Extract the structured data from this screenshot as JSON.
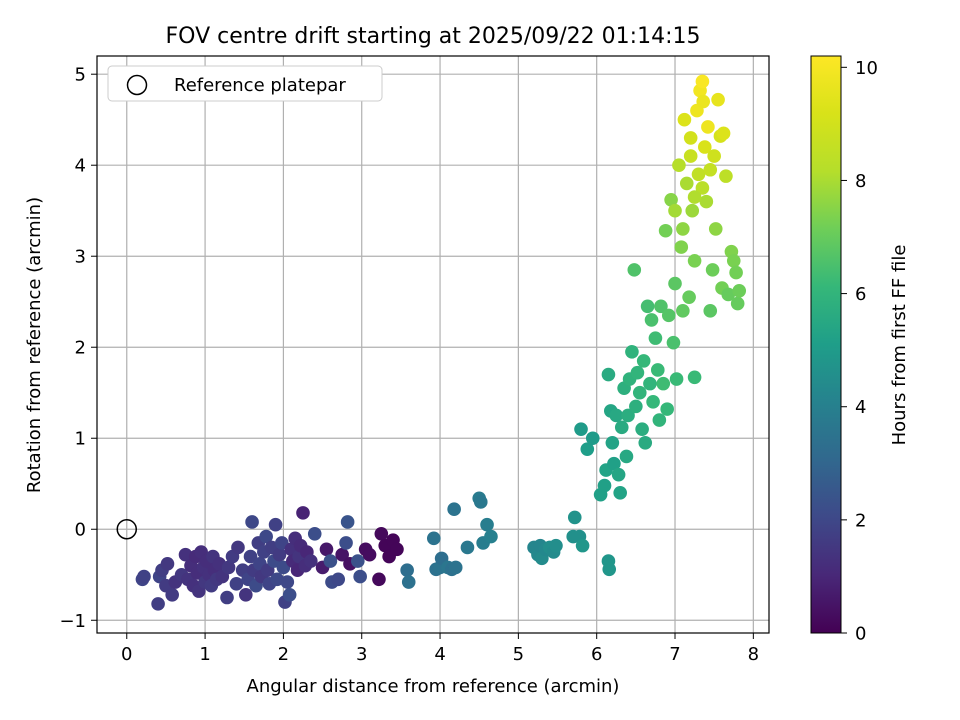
{
  "chart_data": {
    "type": "scatter",
    "title": "FOV centre drift starting at 2025/09/22 01:14:15",
    "xlabel": "Angular distance from reference (arcmin)",
    "ylabel": "Rotation from reference (arcmin)",
    "xlim": [
      -0.38,
      8.2
    ],
    "ylim": [
      -1.14,
      5.2
    ],
    "xticks": [
      0,
      1,
      2,
      3,
      4,
      5,
      6,
      7,
      8
    ],
    "yticks": [
      -1,
      0,
      1,
      2,
      3,
      4,
      5
    ],
    "grid": true,
    "legend": {
      "placement": "upper-left",
      "entries": [
        "Reference platepar"
      ]
    },
    "reference_point": {
      "x": 0,
      "y": 0,
      "label": "Reference platepar"
    },
    "colorbar": {
      "label": "Hours from first FF file",
      "colormap": "viridis",
      "range": [
        0,
        10.2
      ],
      "ticks": [
        0,
        2,
        4,
        6,
        8,
        10
      ]
    },
    "points": [
      {
        "x": 0.2,
        "y": -0.55,
        "h": 1.9
      },
      {
        "x": 0.22,
        "y": -0.52,
        "h": 1.8
      },
      {
        "x": 0.4,
        "y": -0.82,
        "h": 1.7
      },
      {
        "x": 0.42,
        "y": -0.52,
        "h": 1.9
      },
      {
        "x": 0.45,
        "y": -0.45,
        "h": 1.7
      },
      {
        "x": 0.5,
        "y": -0.62,
        "h": 1.6
      },
      {
        "x": 0.52,
        "y": -0.38,
        "h": 1.5
      },
      {
        "x": 0.58,
        "y": -0.72,
        "h": 1.6
      },
      {
        "x": 0.62,
        "y": -0.58,
        "h": 1.4
      },
      {
        "x": 0.7,
        "y": -0.5,
        "h": 1.5
      },
      {
        "x": 0.75,
        "y": -0.28,
        "h": 1.3
      },
      {
        "x": 0.78,
        "y": -0.55,
        "h": 1.4
      },
      {
        "x": 0.82,
        "y": -0.4,
        "h": 1.2
      },
      {
        "x": 0.85,
        "y": -0.62,
        "h": 1.3
      },
      {
        "x": 0.88,
        "y": -0.3,
        "h": 1.1
      },
      {
        "x": 0.9,
        "y": -0.48,
        "h": 1.2
      },
      {
        "x": 0.92,
        "y": -0.68,
        "h": 1.4
      },
      {
        "x": 0.95,
        "y": -0.25,
        "h": 1.2
      },
      {
        "x": 0.98,
        "y": -0.42,
        "h": 1.3
      },
      {
        "x": 1.0,
        "y": -0.58,
        "h": 1.5
      },
      {
        "x": 1.02,
        "y": -0.35,
        "h": 1.2
      },
      {
        "x": 1.05,
        "y": -0.5,
        "h": 1.3
      },
      {
        "x": 1.08,
        "y": -0.62,
        "h": 1.6
      },
      {
        "x": 1.1,
        "y": -0.3,
        "h": 1.4
      },
      {
        "x": 1.12,
        "y": -0.45,
        "h": 1.2
      },
      {
        "x": 1.15,
        "y": -0.55,
        "h": 1.5
      },
      {
        "x": 1.18,
        "y": -0.38,
        "h": 1.3
      },
      {
        "x": 1.22,
        "y": -0.52,
        "h": 1.4
      },
      {
        "x": 1.28,
        "y": -0.75,
        "h": 1.7
      },
      {
        "x": 1.3,
        "y": -0.42,
        "h": 1.5
      },
      {
        "x": 1.35,
        "y": -0.3,
        "h": 1.6
      },
      {
        "x": 1.4,
        "y": -0.6,
        "h": 1.8
      },
      {
        "x": 1.42,
        "y": -0.2,
        "h": 1.5
      },
      {
        "x": 1.48,
        "y": -0.45,
        "h": 1.7
      },
      {
        "x": 1.52,
        "y": -0.72,
        "h": 1.4
      },
      {
        "x": 1.55,
        "y": -0.55,
        "h": 1.9
      },
      {
        "x": 1.58,
        "y": -0.3,
        "h": 1.8
      },
      {
        "x": 1.6,
        "y": 0.08,
        "h": 2.0
      },
      {
        "x": 1.62,
        "y": -0.45,
        "h": 1.6
      },
      {
        "x": 1.65,
        "y": -0.62,
        "h": 2.1
      },
      {
        "x": 1.68,
        "y": -0.15,
        "h": 1.7
      },
      {
        "x": 1.7,
        "y": -0.38,
        "h": 1.9
      },
      {
        "x": 1.72,
        "y": -0.52,
        "h": 1.5
      },
      {
        "x": 1.75,
        "y": -0.25,
        "h": 1.8
      },
      {
        "x": 1.78,
        "y": -0.08,
        "h": 2.0
      },
      {
        "x": 1.8,
        "y": -0.45,
        "h": 1.6
      },
      {
        "x": 1.82,
        "y": -0.6,
        "h": 1.9
      },
      {
        "x": 1.85,
        "y": -0.2,
        "h": 1.7
      },
      {
        "x": 1.88,
        "y": -0.35,
        "h": 2.1
      },
      {
        "x": 1.9,
        "y": 0.05,
        "h": 1.8
      },
      {
        "x": 1.92,
        "y": -0.55,
        "h": 2.0
      },
      {
        "x": 1.95,
        "y": -0.28,
        "h": 1.6
      },
      {
        "x": 1.98,
        "y": -0.15,
        "h": 1.9
      },
      {
        "x": 2.0,
        "y": -0.42,
        "h": 2.1
      },
      {
        "x": 2.02,
        "y": -0.8,
        "h": 1.8
      },
      {
        "x": 2.05,
        "y": -0.58,
        "h": 2.0
      },
      {
        "x": 2.08,
        "y": -0.72,
        "h": 2.2
      },
      {
        "x": 2.1,
        "y": -0.22,
        "h": 1.3
      },
      {
        "x": 2.12,
        "y": -0.35,
        "h": 1.1
      },
      {
        "x": 2.15,
        "y": -0.1,
        "h": 1.2
      },
      {
        "x": 2.18,
        "y": -0.45,
        "h": 1.0
      },
      {
        "x": 2.2,
        "y": -0.3,
        "h": 1.4
      },
      {
        "x": 2.22,
        "y": -0.18,
        "h": 1.1
      },
      {
        "x": 2.25,
        "y": 0.18,
        "h": 0.9
      },
      {
        "x": 2.28,
        "y": -0.4,
        "h": 1.2
      },
      {
        "x": 2.3,
        "y": -0.25,
        "h": 1.0
      },
      {
        "x": 2.35,
        "y": -0.35,
        "h": 1.3
      },
      {
        "x": 2.4,
        "y": -0.05,
        "h": 2.2
      },
      {
        "x": 2.5,
        "y": -0.42,
        "h": 0.7
      },
      {
        "x": 2.55,
        "y": -0.22,
        "h": 0.6
      },
      {
        "x": 2.6,
        "y": -0.35,
        "h": 2.3
      },
      {
        "x": 2.62,
        "y": -0.58,
        "h": 2.1
      },
      {
        "x": 2.7,
        "y": -0.55,
        "h": 2.0
      },
      {
        "x": 2.75,
        "y": -0.28,
        "h": 0.5
      },
      {
        "x": 2.8,
        "y": -0.15,
        "h": 2.2
      },
      {
        "x": 2.82,
        "y": 0.08,
        "h": 2.4
      },
      {
        "x": 2.85,
        "y": -0.38,
        "h": 0.4
      },
      {
        "x": 2.95,
        "y": -0.35,
        "h": 2.3
      },
      {
        "x": 2.98,
        "y": -0.52,
        "h": 2.2
      },
      {
        "x": 3.05,
        "y": -0.22,
        "h": 0.3
      },
      {
        "x": 3.1,
        "y": -0.28,
        "h": 0.3
      },
      {
        "x": 3.22,
        "y": -0.55,
        "h": 0.2
      },
      {
        "x": 3.25,
        "y": -0.05,
        "h": 0.2
      },
      {
        "x": 3.3,
        "y": -0.18,
        "h": 0.1
      },
      {
        "x": 3.35,
        "y": -0.3,
        "h": 0.1
      },
      {
        "x": 3.4,
        "y": -0.12,
        "h": 0.1
      },
      {
        "x": 3.45,
        "y": -0.22,
        "h": 0.1
      },
      {
        "x": 3.58,
        "y": -0.45,
        "h": 3.3
      },
      {
        "x": 3.6,
        "y": -0.58,
        "h": 3.4
      },
      {
        "x": 3.92,
        "y": -0.1,
        "h": 3.5
      },
      {
        "x": 3.95,
        "y": -0.44,
        "h": 3.4
      },
      {
        "x": 4.0,
        "y": -0.42,
        "h": 3.5
      },
      {
        "x": 4.02,
        "y": -0.32,
        "h": 3.3
      },
      {
        "x": 4.1,
        "y": -0.42,
        "h": 3.6
      },
      {
        "x": 4.15,
        "y": -0.44,
        "h": 3.4
      },
      {
        "x": 4.18,
        "y": 0.22,
        "h": 3.5
      },
      {
        "x": 4.2,
        "y": -0.42,
        "h": 3.5
      },
      {
        "x": 4.35,
        "y": -0.2,
        "h": 3.7
      },
      {
        "x": 4.5,
        "y": 0.34,
        "h": 3.8
      },
      {
        "x": 4.52,
        "y": 0.3,
        "h": 3.7
      },
      {
        "x": 4.55,
        "y": -0.15,
        "h": 3.9
      },
      {
        "x": 4.6,
        "y": 0.05,
        "h": 3.9
      },
      {
        "x": 4.65,
        "y": -0.08,
        "h": 4.0
      },
      {
        "x": 5.2,
        "y": -0.2,
        "h": 4.2
      },
      {
        "x": 5.25,
        "y": -0.28,
        "h": 4.3
      },
      {
        "x": 5.28,
        "y": -0.18,
        "h": 4.2
      },
      {
        "x": 5.3,
        "y": -0.32,
        "h": 4.4
      },
      {
        "x": 5.35,
        "y": -0.22,
        "h": 4.3
      },
      {
        "x": 5.4,
        "y": -0.2,
        "h": 4.5
      },
      {
        "x": 5.45,
        "y": -0.25,
        "h": 4.4
      },
      {
        "x": 5.48,
        "y": -0.18,
        "h": 4.5
      },
      {
        "x": 5.7,
        "y": -0.08,
        "h": 4.6
      },
      {
        "x": 5.72,
        "y": 0.13,
        "h": 4.7
      },
      {
        "x": 5.78,
        "y": -0.08,
        "h": 4.6
      },
      {
        "x": 5.82,
        "y": -0.18,
        "h": 4.8
      },
      {
        "x": 5.8,
        "y": 1.1,
        "h": 5.0
      },
      {
        "x": 5.88,
        "y": 0.88,
        "h": 5.1
      },
      {
        "x": 5.95,
        "y": 1.0,
        "h": 5.0
      },
      {
        "x": 6.05,
        "y": 0.38,
        "h": 5.2
      },
      {
        "x": 6.1,
        "y": 0.48,
        "h": 5.2
      },
      {
        "x": 6.12,
        "y": 0.65,
        "h": 5.3
      },
      {
        "x": 6.15,
        "y": -0.35,
        "h": 4.8
      },
      {
        "x": 6.16,
        "y": -0.44,
        "h": 4.8
      },
      {
        "x": 6.15,
        "y": 1.7,
        "h": 5.6
      },
      {
        "x": 6.18,
        "y": 1.3,
        "h": 5.4
      },
      {
        "x": 6.2,
        "y": 0.95,
        "h": 5.3
      },
      {
        "x": 6.22,
        "y": 0.72,
        "h": 5.2
      },
      {
        "x": 6.25,
        "y": 1.25,
        "h": 5.5
      },
      {
        "x": 6.28,
        "y": 0.6,
        "h": 5.4
      },
      {
        "x": 6.3,
        "y": 0.4,
        "h": 5.3
      },
      {
        "x": 6.32,
        "y": 1.12,
        "h": 5.6
      },
      {
        "x": 6.35,
        "y": 1.55,
        "h": 5.8
      },
      {
        "x": 6.38,
        "y": 0.8,
        "h": 5.5
      },
      {
        "x": 6.4,
        "y": 1.25,
        "h": 5.7
      },
      {
        "x": 6.42,
        "y": 1.65,
        "h": 5.9
      },
      {
        "x": 6.45,
        "y": 1.95,
        "h": 5.9
      },
      {
        "x": 6.48,
        "y": 2.85,
        "h": 6.6
      },
      {
        "x": 6.5,
        "y": 1.35,
        "h": 5.8
      },
      {
        "x": 6.52,
        "y": 1.72,
        "h": 6.0
      },
      {
        "x": 6.55,
        "y": 1.5,
        "h": 6.0
      },
      {
        "x": 6.58,
        "y": 1.1,
        "h": 5.7
      },
      {
        "x": 6.6,
        "y": 1.85,
        "h": 6.1
      },
      {
        "x": 6.62,
        "y": 0.95,
        "h": 5.6
      },
      {
        "x": 6.65,
        "y": 2.45,
        "h": 6.4
      },
      {
        "x": 6.68,
        "y": 1.6,
        "h": 6.0
      },
      {
        "x": 6.7,
        "y": 2.3,
        "h": 6.5
      },
      {
        "x": 6.72,
        "y": 1.4,
        "h": 6.1
      },
      {
        "x": 6.75,
        "y": 2.1,
        "h": 6.3
      },
      {
        "x": 6.78,
        "y": 1.75,
        "h": 6.2
      },
      {
        "x": 6.8,
        "y": 1.2,
        "h": 6.0
      },
      {
        "x": 6.82,
        "y": 2.45,
        "h": 6.6
      },
      {
        "x": 6.85,
        "y": 1.6,
        "h": 6.3
      },
      {
        "x": 6.88,
        "y": 3.28,
        "h": 7.2
      },
      {
        "x": 6.9,
        "y": 1.32,
        "h": 6.1
      },
      {
        "x": 6.92,
        "y": 2.35,
        "h": 6.7
      },
      {
        "x": 6.95,
        "y": 3.62,
        "h": 7.5
      },
      {
        "x": 6.98,
        "y": 2.05,
        "h": 6.5
      },
      {
        "x": 7.0,
        "y": 2.7,
        "h": 6.8
      },
      {
        "x": 7.02,
        "y": 1.65,
        "h": 6.2
      },
      {
        "x": 7.05,
        "y": 4.0,
        "h": 8.2
      },
      {
        "x": 7.08,
        "y": 3.1,
        "h": 7.4
      },
      {
        "x": 7.1,
        "y": 2.4,
        "h": 6.9
      },
      {
        "x": 7.12,
        "y": 4.5,
        "h": 9.3
      },
      {
        "x": 7.15,
        "y": 3.8,
        "h": 8.0
      },
      {
        "x": 7.18,
        "y": 2.55,
        "h": 7.0
      },
      {
        "x": 7.2,
        "y": 4.3,
        "h": 9.0
      },
      {
        "x": 7.22,
        "y": 3.5,
        "h": 7.8
      },
      {
        "x": 7.25,
        "y": 2.95,
        "h": 7.3
      },
      {
        "x": 7.25,
        "y": 1.67,
        "h": 6.2
      },
      {
        "x": 7.28,
        "y": 4.6,
        "h": 9.8
      },
      {
        "x": 7.3,
        "y": 3.9,
        "h": 8.5
      },
      {
        "x": 7.32,
        "y": 4.82,
        "h": 9.9
      },
      {
        "x": 7.35,
        "y": 4.92,
        "h": 10.1
      },
      {
        "x": 7.36,
        "y": 4.7,
        "h": 9.7
      },
      {
        "x": 7.38,
        "y": 4.2,
        "h": 9.2
      },
      {
        "x": 7.4,
        "y": 3.6,
        "h": 8.0
      },
      {
        "x": 7.42,
        "y": 4.42,
        "h": 9.8
      },
      {
        "x": 7.45,
        "y": 2.4,
        "h": 6.8
      },
      {
        "x": 7.48,
        "y": 2.85,
        "h": 7.1
      },
      {
        "x": 7.5,
        "y": 4.1,
        "h": 8.9
      },
      {
        "x": 7.52,
        "y": 3.3,
        "h": 7.6
      },
      {
        "x": 7.55,
        "y": 4.72,
        "h": 9.6
      },
      {
        "x": 7.58,
        "y": 4.32,
        "h": 9.1
      },
      {
        "x": 7.6,
        "y": 2.65,
        "h": 7.2
      },
      {
        "x": 7.62,
        "y": 4.35,
        "h": 9.3
      },
      {
        "x": 7.65,
        "y": 3.88,
        "h": 8.4
      },
      {
        "x": 7.68,
        "y": 2.58,
        "h": 7.0
      },
      {
        "x": 7.72,
        "y": 3.05,
        "h": 7.4
      },
      {
        "x": 7.75,
        "y": 2.95,
        "h": 7.3
      },
      {
        "x": 7.78,
        "y": 2.82,
        "h": 7.2
      },
      {
        "x": 7.8,
        "y": 2.48,
        "h": 7.0
      },
      {
        "x": 7.82,
        "y": 2.62,
        "h": 7.1
      },
      {
        "x": 7.0,
        "y": 3.5,
        "h": 7.9
      },
      {
        "x": 7.1,
        "y": 3.3,
        "h": 7.6
      },
      {
        "x": 7.2,
        "y": 4.1,
        "h": 8.7
      },
      {
        "x": 7.35,
        "y": 3.75,
        "h": 8.3
      },
      {
        "x": 7.45,
        "y": 3.95,
        "h": 8.6
      },
      {
        "x": 7.25,
        "y": 3.65,
        "h": 8.1
      }
    ]
  }
}
